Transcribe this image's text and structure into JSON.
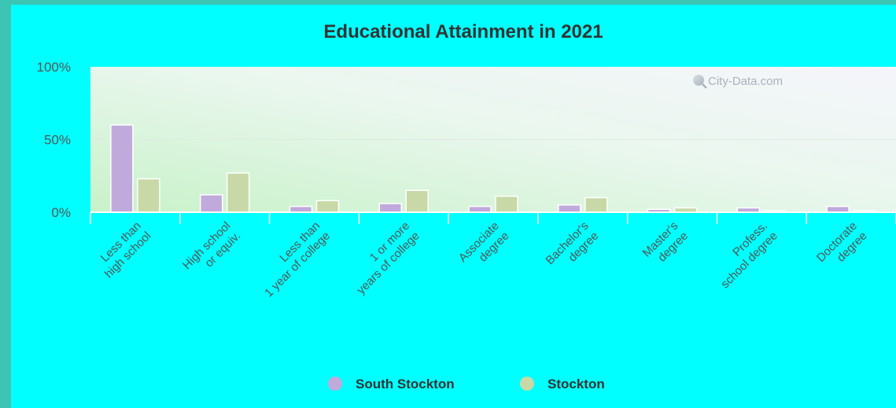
{
  "chart_data": {
    "type": "bar",
    "title": "Educational Attainment in 2021",
    "categories": [
      [
        "Less than",
        "high school"
      ],
      [
        "High school",
        "or equiv."
      ],
      [
        "Less than",
        "1 year of college"
      ],
      [
        "1 or more",
        "years of college"
      ],
      [
        "Associate",
        "degree"
      ],
      [
        "Bachelor's",
        "degree"
      ],
      [
        "Master's",
        "degree"
      ],
      [
        "Profess.",
        "school degree"
      ],
      [
        "Doctorate",
        "degree"
      ]
    ],
    "series": [
      {
        "name": "South Stockton",
        "color": "#c0aadb",
        "values": [
          60,
          12,
          4,
          6,
          4,
          5,
          2,
          3,
          4
        ]
      },
      {
        "name": "Stockton",
        "color": "#c8d9a7",
        "values": [
          23,
          27,
          8,
          15,
          11,
          10,
          3,
          1,
          1
        ]
      }
    ],
    "yticks": [
      "0%",
      "50%",
      "100%"
    ],
    "ylim": [
      0,
      100
    ],
    "legend_position": "bottom",
    "grid": true,
    "watermark": "City-Data.com"
  }
}
